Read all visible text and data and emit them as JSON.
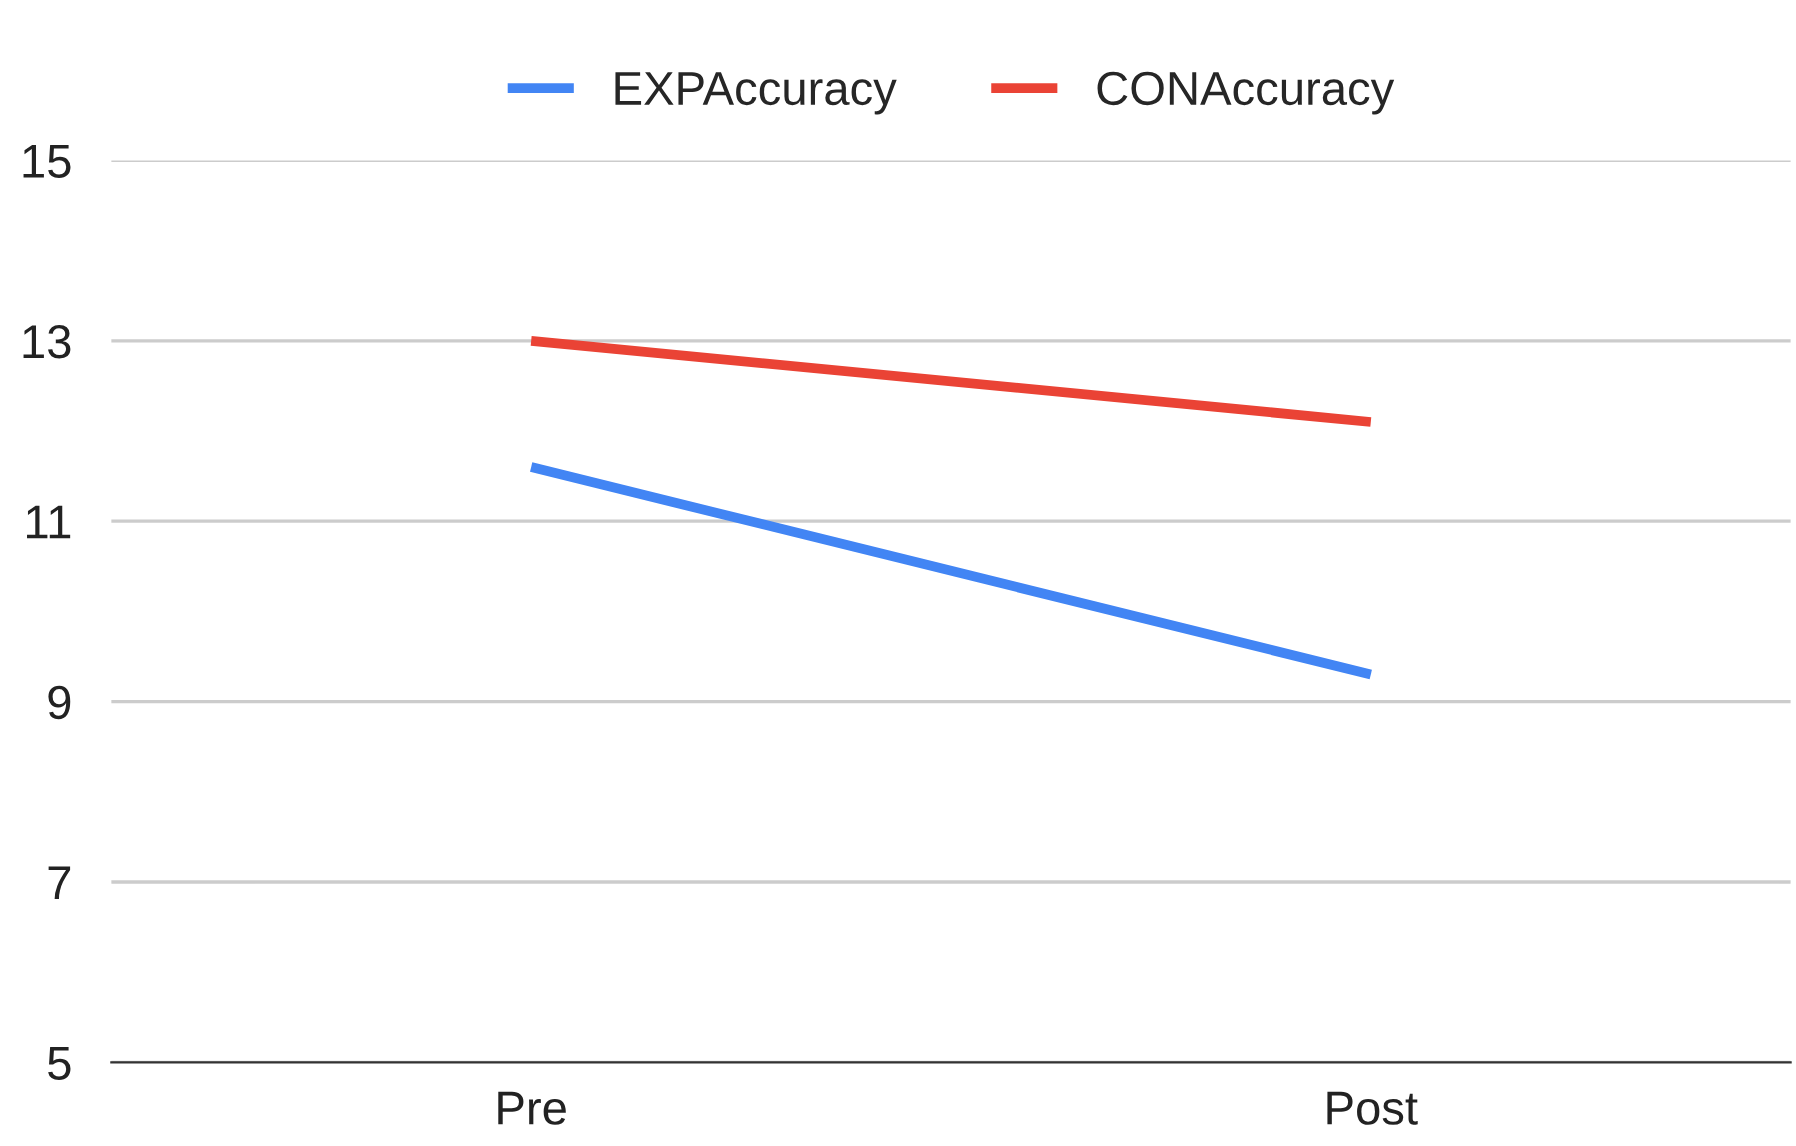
{
  "chart_data": {
    "type": "line",
    "categories": [
      "Pre",
      "Post"
    ],
    "series": [
      {
        "name": "EXPAccuracy",
        "color": "#4285f4",
        "values": [
          11.6,
          9.3
        ]
      },
      {
        "name": "CONAccuracy",
        "color": "#ea4335",
        "values": [
          13.0,
          12.1
        ]
      }
    ],
    "ylim": [
      5,
      15
    ],
    "yticks": [
      5,
      7,
      9,
      11,
      13,
      15
    ],
    "grid": "y",
    "legend": "top",
    "marker": "none",
    "line_style": "solid"
  }
}
